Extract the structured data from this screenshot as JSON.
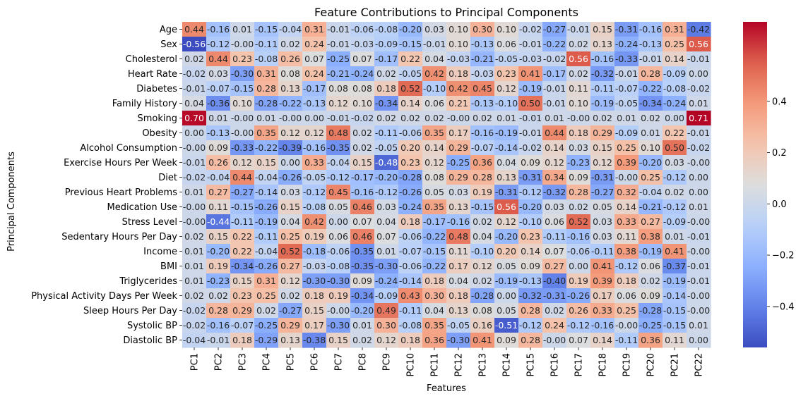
{
  "chart_data": {
    "type": "heatmap",
    "title": "Feature Contributions to Principal Components",
    "xlabel": "Features",
    "ylabel": "Principal Components",
    "colormap": "coolwarm",
    "vmin": -0.56,
    "vmax": 0.71,
    "colorbar_ticks": [
      0.4,
      0.2,
      0.0,
      -0.2,
      -0.4
    ],
    "colorbar_tick_labels": [
      "0.4",
      "0.2",
      "0.0",
      "−0.2",
      "−0.4"
    ],
    "columns": [
      "PC1",
      "PC2",
      "PC3",
      "PC4",
      "PC5",
      "PC6",
      "PC7",
      "PC8",
      "PC9",
      "PC10",
      "PC11",
      "PC12",
      "PC13",
      "PC14",
      "PC15",
      "PC16",
      "PC17",
      "PC18",
      "PC19",
      "PC20",
      "PC21",
      "PC22"
    ],
    "rows": [
      "Age",
      "Sex",
      "Cholesterol",
      "Heart Rate",
      "Diabetes",
      "Family History",
      "Smoking",
      "Obesity",
      "Alcohol Consumption",
      "Exercise Hours Per Week",
      "Diet",
      "Previous Heart Problems",
      "Medication Use",
      "Stress Level",
      "Sedentary Hours Per Day",
      "Income",
      "BMI",
      "Triglycerides",
      "Physical Activity Days Per Week",
      "Sleep Hours Per Day",
      "Systolic BP",
      "Diastolic BP"
    ],
    "values": [
      [
        0.44,
        -0.16,
        0.01,
        -0.15,
        -0.04,
        0.31,
        -0.01,
        -0.06,
        -0.08,
        -0.2,
        0.03,
        0.1,
        0.3,
        0.1,
        -0.02,
        -0.27,
        -0.01,
        0.15,
        -0.31,
        -0.16,
        0.31,
        -0.42
      ],
      [
        -0.56,
        -0.12,
        -0.0,
        -0.11,
        0.02,
        0.24,
        -0.01,
        -0.03,
        -0.09,
        -0.15,
        -0.01,
        0.1,
        -0.13,
        0.06,
        -0.01,
        -0.22,
        0.02,
        0.13,
        -0.24,
        -0.13,
        0.25,
        0.56
      ],
      [
        0.02,
        0.44,
        0.23,
        -0.08,
        0.26,
        0.07,
        -0.25,
        0.07,
        -0.17,
        0.22,
        0.04,
        -0.03,
        -0.21,
        -0.05,
        -0.03,
        -0.02,
        0.56,
        -0.16,
        -0.33,
        -0.01,
        0.14,
        -0.01
      ],
      [
        -0.02,
        0.03,
        -0.3,
        0.31,
        0.08,
        0.24,
        -0.21,
        -0.24,
        0.02,
        -0.05,
        0.42,
        0.18,
        -0.03,
        0.23,
        0.41,
        -0.17,
        0.02,
        -0.32,
        -0.01,
        0.28,
        -0.09,
        0.0
      ],
      [
        -0.01,
        -0.07,
        -0.15,
        0.28,
        0.13,
        -0.17,
        0.08,
        0.08,
        0.18,
        0.52,
        -0.1,
        0.42,
        0.45,
        0.12,
        -0.19,
        -0.01,
        0.11,
        -0.11,
        -0.07,
        -0.22,
        -0.08,
        -0.02
      ],
      [
        0.04,
        -0.36,
        0.1,
        -0.28,
        -0.22,
        -0.13,
        0.12,
        0.1,
        -0.34,
        0.14,
        0.06,
        0.21,
        -0.13,
        -0.1,
        0.5,
        -0.01,
        0.1,
        -0.19,
        -0.05,
        -0.34,
        -0.24,
        0.01
      ],
      [
        0.7,
        0.01,
        -0.0,
        0.01,
        -0.0,
        0.0,
        -0.01,
        -0.02,
        0.02,
        0.02,
        0.02,
        -0.0,
        0.02,
        0.01,
        -0.01,
        0.01,
        -0.0,
        0.02,
        0.01,
        0.02,
        0.0,
        0.71
      ],
      [
        0.0,
        -0.13,
        -0.0,
        0.35,
        0.12,
        0.12,
        0.48,
        0.02,
        -0.11,
        -0.06,
        0.35,
        0.17,
        -0.16,
        -0.19,
        -0.01,
        0.44,
        0.18,
        0.29,
        -0.09,
        0.01,
        0.22,
        -0.01
      ],
      [
        -0.0,
        0.09,
        -0.33,
        -0.22,
        -0.39,
        -0.16,
        -0.35,
        0.02,
        -0.05,
        0.2,
        0.14,
        0.29,
        -0.07,
        -0.14,
        -0.02,
        0.14,
        0.03,
        0.15,
        0.25,
        0.1,
        0.5,
        -0.02
      ],
      [
        -0.01,
        0.26,
        0.12,
        0.15,
        0.0,
        0.33,
        -0.04,
        0.15,
        -0.48,
        0.23,
        0.12,
        -0.25,
        0.36,
        0.04,
        0.09,
        0.12,
        -0.23,
        0.12,
        0.39,
        -0.2,
        0.03,
        -0.0
      ],
      [
        -0.02,
        -0.04,
        0.44,
        -0.04,
        -0.26,
        -0.05,
        -0.12,
        -0.17,
        -0.2,
        -0.28,
        0.08,
        0.29,
        0.28,
        0.13,
        -0.31,
        0.34,
        0.09,
        -0.31,
        -0.0,
        0.25,
        -0.12,
        0.0
      ],
      [
        0.01,
        0.27,
        -0.27,
        -0.14,
        0.03,
        -0.12,
        0.45,
        -0.16,
        -0.12,
        -0.26,
        0.05,
        0.03,
        0.19,
        -0.31,
        -0.12,
        -0.32,
        0.28,
        -0.27,
        0.32,
        -0.04,
        0.02,
        0.0
      ],
      [
        -0.0,
        0.11,
        -0.15,
        -0.26,
        0.15,
        -0.08,
        0.05,
        0.46,
        0.03,
        -0.24,
        0.35,
        0.13,
        -0.15,
        0.56,
        -0.2,
        0.03,
        0.02,
        0.05,
        0.14,
        -0.21,
        -0.12,
        0.01
      ],
      [
        -0.0,
        -0.44,
        -0.11,
        -0.19,
        0.04,
        0.42,
        0.0,
        0.07,
        0.04,
        0.18,
        -0.17,
        -0.16,
        0.02,
        0.12,
        -0.1,
        0.06,
        0.52,
        0.03,
        0.33,
        0.27,
        -0.09,
        -0.0
      ],
      [
        0.02,
        0.15,
        0.22,
        -0.11,
        0.25,
        0.19,
        0.06,
        0.46,
        0.07,
        -0.06,
        -0.22,
        0.48,
        0.04,
        -0.2,
        0.23,
        -0.11,
        -0.16,
        0.03,
        0.11,
        0.38,
        0.01,
        -0.01
      ],
      [
        0.01,
        -0.2,
        0.22,
        -0.04,
        0.52,
        -0.18,
        -0.06,
        -0.35,
        0.01,
        -0.07,
        -0.15,
        0.11,
        -0.1,
        0.2,
        0.14,
        0.07,
        -0.06,
        -0.11,
        0.38,
        -0.19,
        0.41,
        -0.0
      ],
      [
        0.01,
        0.19,
        -0.34,
        -0.26,
        0.27,
        -0.03,
        -0.08,
        -0.35,
        -0.3,
        -0.06,
        -0.22,
        0.17,
        0.12,
        0.05,
        0.09,
        0.27,
        0.0,
        0.41,
        -0.12,
        0.06,
        -0.37,
        -0.01
      ],
      [
        0.01,
        -0.23,
        0.15,
        0.31,
        0.12,
        -0.3,
        -0.3,
        0.09,
        -0.24,
        -0.14,
        0.18,
        0.04,
        0.02,
        -0.19,
        -0.13,
        -0.4,
        0.19,
        0.39,
        0.18,
        0.02,
        -0.19,
        -0.01
      ],
      [
        0.02,
        0.02,
        0.23,
        0.25,
        0.02,
        0.18,
        0.19,
        -0.34,
        -0.09,
        0.43,
        0.3,
        0.18,
        -0.28,
        0.0,
        -0.32,
        -0.31,
        -0.26,
        0.17,
        0.06,
        0.09,
        -0.14,
        -0.0
      ],
      [
        -0.02,
        0.28,
        0.29,
        0.02,
        -0.27,
        0.15,
        -0.0,
        -0.2,
        0.49,
        -0.11,
        0.04,
        0.13,
        0.08,
        0.05,
        0.28,
        0.02,
        0.26,
        0.33,
        0.25,
        -0.28,
        -0.15,
        -0.0
      ],
      [
        -0.02,
        -0.16,
        -0.07,
        -0.25,
        0.29,
        0.17,
        -0.3,
        0.01,
        0.3,
        -0.08,
        0.35,
        -0.05,
        0.16,
        -0.51,
        -0.12,
        0.24,
        -0.12,
        -0.16,
        -0.0,
        -0.25,
        -0.15,
        0.01
      ],
      [
        -0.04,
        -0.01,
        0.18,
        -0.29,
        0.13,
        -0.38,
        0.15,
        0.02,
        0.12,
        0.18,
        0.36,
        -0.3,
        0.41,
        0.09,
        0.28,
        -0.0,
        0.07,
        0.14,
        -0.11,
        0.36,
        0.11,
        0.0
      ]
    ]
  }
}
